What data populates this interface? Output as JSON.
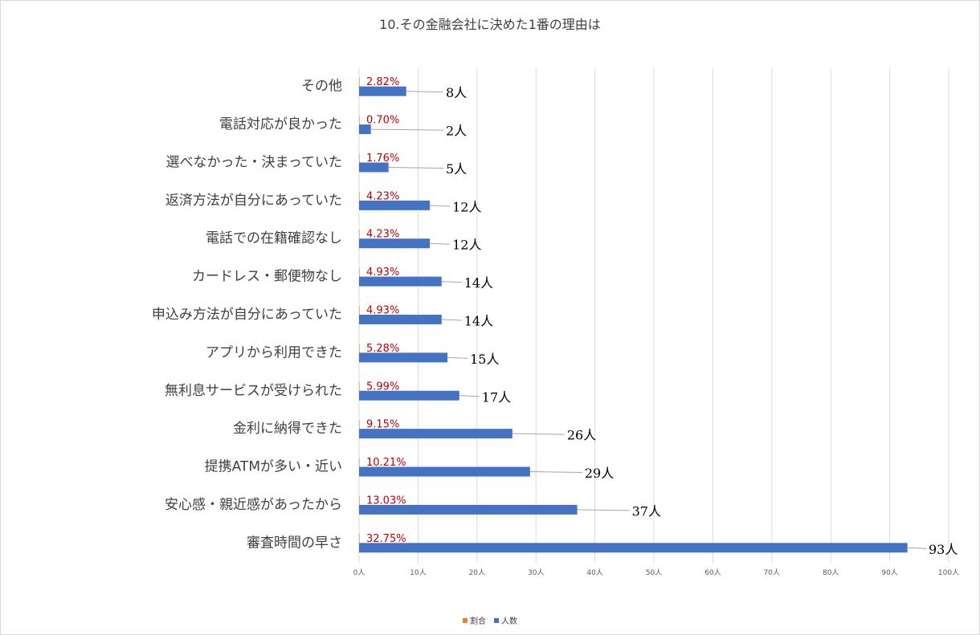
{
  "chart_data": {
    "type": "bar",
    "orientation": "horizontal",
    "title": "10.その金融会社に決めた1番の理由は",
    "categories": [
      "審査時間の早さ",
      "安心感・親近感があったから",
      "提携ATMが多い・近い",
      "金利に納得できた",
      "無利息サービスが受けられた",
      "アプリから利用できた",
      "申込み方法が自分にあっていた",
      "カードレス・郵便物なし",
      "電話での在籍確認なし",
      "返済方法が自分にあっていた",
      "選べなかった・決まっていた",
      "電話対応が良かった",
      "その他"
    ],
    "series": [
      {
        "name": "割合",
        "color": "#ed7d31",
        "values": [
          0.3275,
          0.1303,
          0.1021,
          0.0915,
          0.0599,
          0.0528,
          0.0493,
          0.0493,
          0.0423,
          0.0423,
          0.0176,
          0.007,
          0.0282
        ],
        "data_labels": [
          "32.75%",
          "13.03%",
          "10.21%",
          "9.15%",
          "5.99%",
          "5.28%",
          "4.93%",
          "4.93%",
          "4.23%",
          "4.23%",
          "1.76%",
          "0.70%",
          "2.82%"
        ]
      },
      {
        "name": "人数",
        "color": "#4472c4",
        "values": [
          93,
          37,
          29,
          26,
          17,
          15,
          14,
          14,
          12,
          12,
          5,
          2,
          8
        ],
        "data_labels": [
          "93人",
          "37人",
          "29人",
          "26人",
          "17人",
          "15人",
          "14人",
          "14人",
          "12人",
          "12人",
          "5人",
          "2人",
          "8人"
        ]
      }
    ],
    "xlim": [
      0,
      100
    ],
    "x_ticks": [
      0,
      10,
      20,
      30,
      40,
      50,
      60,
      70,
      80,
      90,
      100
    ],
    "x_tick_labels": [
      "0人",
      "10人",
      "20人",
      "30人",
      "40人",
      "50人",
      "60人",
      "70人",
      "80人",
      "90人",
      "100人"
    ],
    "xlabel": "",
    "ylabel": "",
    "grid": true,
    "legend_position": "bottom"
  }
}
